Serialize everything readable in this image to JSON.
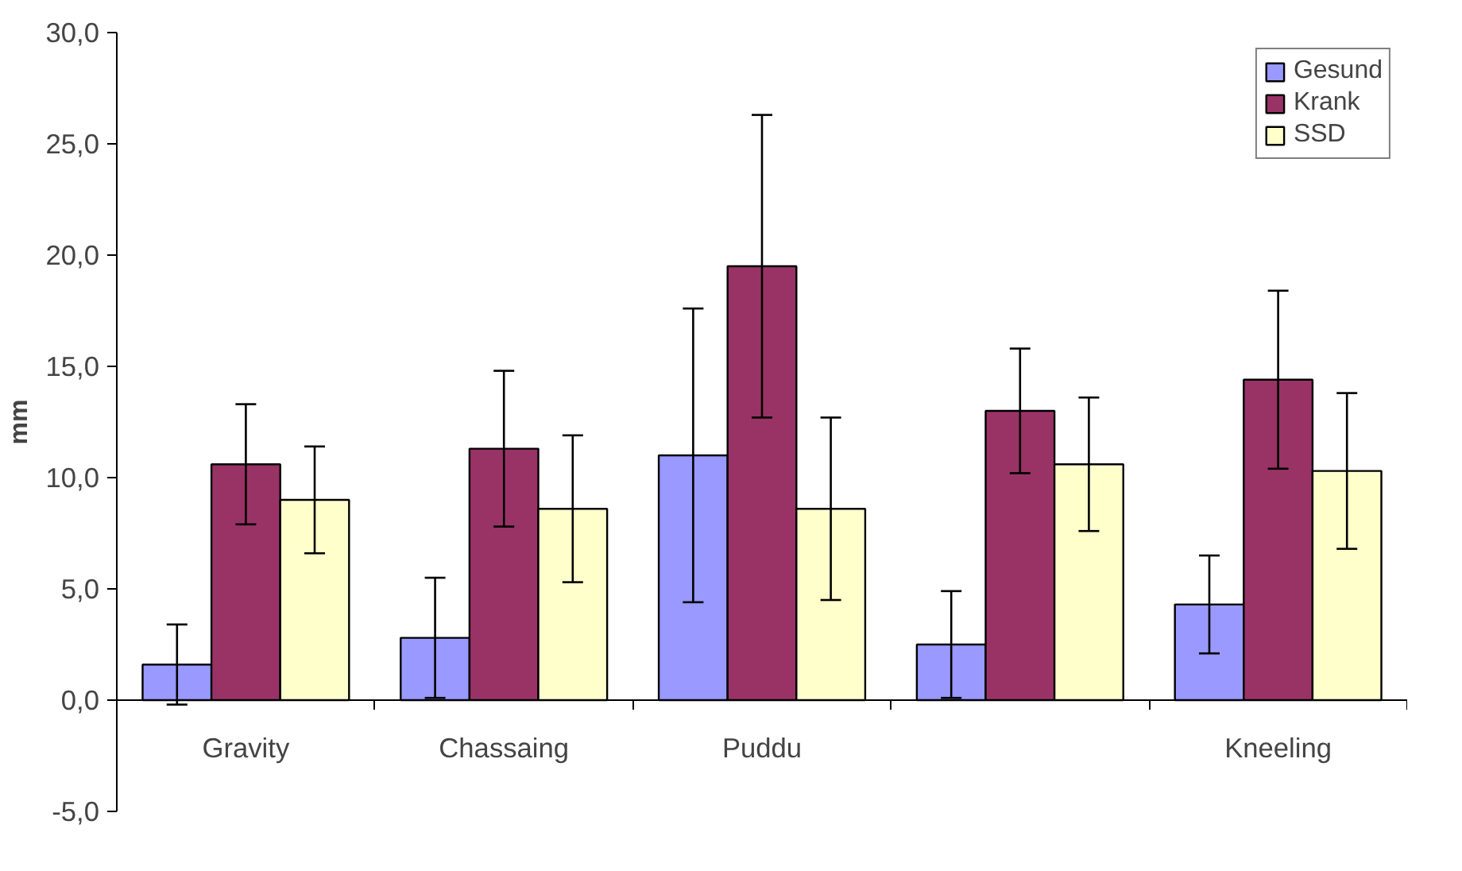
{
  "chart_data": {
    "type": "bar",
    "ylabel": "mm",
    "categories": [
      "Gravity",
      "Chassaing",
      "Puddu",
      null,
      "Kneeling"
    ],
    "series": [
      {
        "name": "Gesund",
        "color": "#9999ff",
        "values": [
          1.6,
          2.8,
          11.0,
          2.5,
          4.3
        ],
        "errors": [
          1.8,
          2.7,
          6.6,
          2.4,
          2.2
        ]
      },
      {
        "name": "Krank",
        "color": "#993366",
        "values": [
          10.6,
          11.3,
          19.5,
          13.0,
          14.4
        ],
        "errors": [
          2.7,
          3.5,
          6.8,
          2.8,
          4.0
        ]
      },
      {
        "name": "SSD",
        "color": "#ffffcc",
        "values": [
          9.0,
          8.6,
          8.6,
          10.6,
          10.3
        ],
        "errors": [
          2.4,
          3.3,
          4.1,
          3.0,
          3.5
        ]
      }
    ],
    "ylim": [
      -5,
      30
    ],
    "yticks": [
      {
        "value": -5,
        "label": "-5,0"
      },
      {
        "value": 0,
        "label": "0,0"
      },
      {
        "value": 5,
        "label": "5,0"
      },
      {
        "value": 10,
        "label": "10,0"
      },
      {
        "value": 15,
        "label": "15,0"
      },
      {
        "value": 20,
        "label": "20,0"
      },
      {
        "value": 25,
        "label": "25,0"
      },
      {
        "value": 30,
        "label": "30,0"
      }
    ],
    "grid": false,
    "legend": "top right"
  }
}
